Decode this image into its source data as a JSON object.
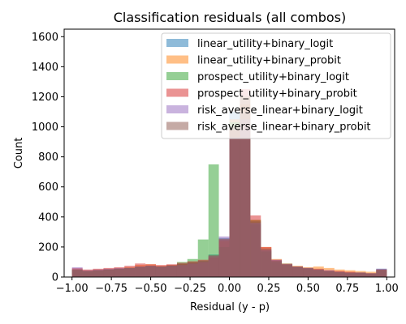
{
  "chart_data": {
    "type": "histogram",
    "title": "Classification residuals (all combos)",
    "xlabel": "Residual (y - p)",
    "ylabel": "Count",
    "xlim": [
      -1.05,
      1.05
    ],
    "ylim": [
      0,
      1650
    ],
    "xticks": [
      -1.0,
      -0.75,
      -0.5,
      -0.25,
      0.0,
      0.25,
      0.5,
      0.75,
      1.0
    ],
    "xtick_labels": [
      "−1.00",
      "−0.75",
      "−0.50",
      "−0.25",
      "0.00",
      "0.25",
      "0.50",
      "0.75",
      "1.00"
    ],
    "yticks": [
      0,
      200,
      400,
      600,
      800,
      1000,
      1200,
      1400,
      1600
    ],
    "ytick_labels": [
      "0",
      "200",
      "400",
      "600",
      "800",
      "1000",
      "1200",
      "1400",
      "1600"
    ],
    "bin_edges": [
      -1.0,
      -0.933,
      -0.867,
      -0.8,
      -0.733,
      -0.667,
      -0.6,
      -0.533,
      -0.467,
      -0.4,
      -0.333,
      -0.267,
      -0.2,
      -0.133,
      -0.067,
      0.0,
      0.067,
      0.133,
      0.2,
      0.267,
      0.333,
      0.4,
      0.467,
      0.533,
      0.6,
      0.667,
      0.733,
      0.8,
      0.867,
      0.933,
      1.0
    ],
    "alpha": 0.5,
    "legend_position": "top-right",
    "series": [
      {
        "name": "linear_utility+binary_logit",
        "color": "#1f77b4",
        "counts": [
          50,
          40,
          45,
          50,
          55,
          60,
          70,
          75,
          70,
          80,
          90,
          100,
          110,
          150,
          260,
          1100,
          1000,
          350,
          180,
          110,
          90,
          70,
          60,
          50,
          40,
          35,
          30,
          30,
          25,
          55
        ]
      },
      {
        "name": "linear_utility+binary_probit",
        "color": "#ff7f0e",
        "counts": [
          55,
          45,
          50,
          55,
          60,
          65,
          80,
          85,
          75,
          80,
          85,
          95,
          100,
          140,
          240,
          1050,
          1150,
          380,
          200,
          120,
          90,
          75,
          65,
          70,
          60,
          50,
          45,
          40,
          35,
          50
        ]
      },
      {
        "name": "prospect_utility+binary_logit",
        "color": "#2ca02c",
        "counts": [
          45,
          40,
          45,
          50,
          55,
          60,
          65,
          70,
          70,
          75,
          100,
          120,
          250,
          750,
          200,
          1030,
          1200,
          380,
          170,
          100,
          80,
          65,
          55,
          45,
          40,
          30,
          25,
          25,
          20,
          45
        ]
      },
      {
        "name": "prospect_utility+binary_probit",
        "color": "#d62728",
        "counts": [
          60,
          50,
          55,
          60,
          65,
          75,
          90,
          85,
          80,
          85,
          95,
          105,
          115,
          130,
          250,
          980,
          1250,
          410,
          200,
          115,
          85,
          70,
          60,
          55,
          45,
          40,
          35,
          30,
          25,
          50
        ]
      },
      {
        "name": "risk_averse_linear+binary_logit",
        "color": "#9467bd",
        "counts": [
          65,
          45,
          50,
          55,
          60,
          60,
          70,
          75,
          70,
          75,
          80,
          90,
          100,
          140,
          270,
          930,
          1050,
          360,
          180,
          115,
          85,
          70,
          60,
          50,
          45,
          35,
          30,
          30,
          25,
          55
        ]
      },
      {
        "name": "risk_averse_linear+binary_probit",
        "color": "#8c564b",
        "counts": [
          50,
          40,
          45,
          50,
          55,
          60,
          70,
          75,
          70,
          75,
          85,
          95,
          105,
          145,
          255,
          1000,
          1100,
          370,
          190,
          110,
          85,
          70,
          60,
          50,
          40,
          35,
          30,
          30,
          25,
          50
        ]
      }
    ]
  }
}
